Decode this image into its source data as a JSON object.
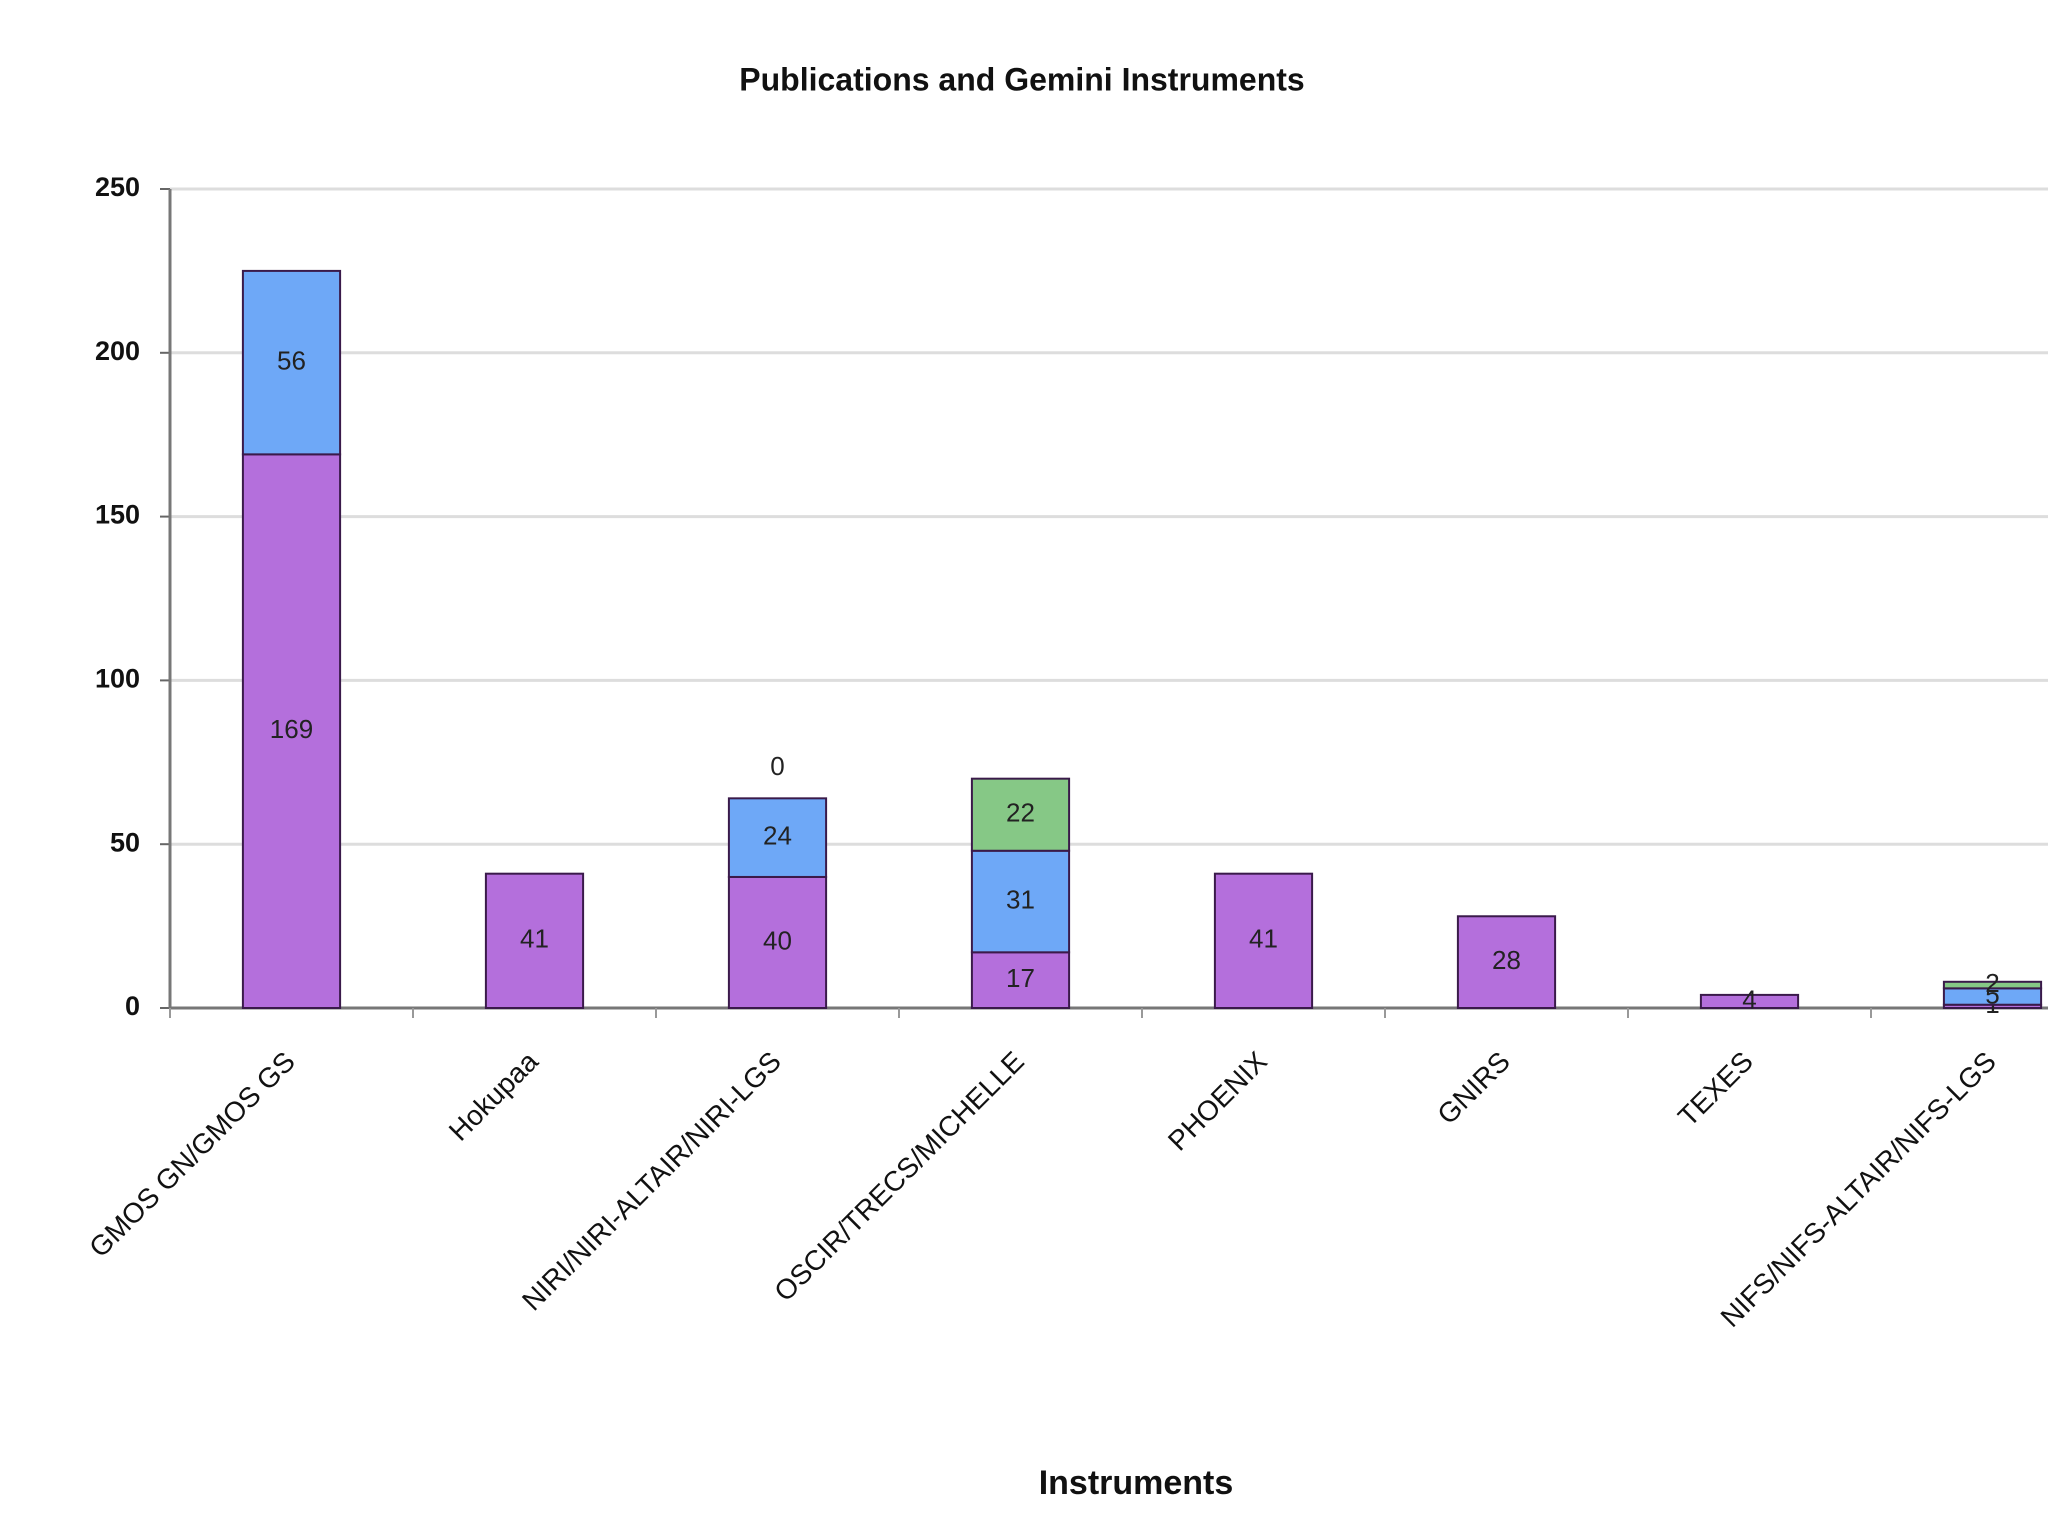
{
  "chart_data": {
    "type": "stacked_bar",
    "title": "Publications and Gemini Instruments",
    "x_label": "Instruments",
    "categories": [
      "GMOS GN/GMOS GS",
      "Hokupaa",
      "NIRI/NIRI-ALTAIR/NIRI-LGS",
      "OSCIR/TRECS/MICHELLE",
      "PHOENIX",
      "GNIRS",
      "TEXES",
      "NIFS/NIFS-ALTAIR/NIFS-LGS"
    ],
    "series": [
      {
        "color": "#b46fdc",
        "values": [
          169,
          41,
          40,
          17,
          41,
          28,
          4,
          1
        ]
      },
      {
        "color": "#6ea8f7",
        "values": [
          56,
          null,
          24,
          31,
          null,
          null,
          null,
          5
        ]
      },
      {
        "color": "#86c886",
        "values": [
          null,
          null,
          0,
          22,
          null,
          null,
          null,
          2
        ]
      }
    ],
    "ylim": [
      0,
      250
    ],
    "yticks": [
      0,
      50,
      100,
      150,
      200,
      250
    ],
    "grid": true
  }
}
